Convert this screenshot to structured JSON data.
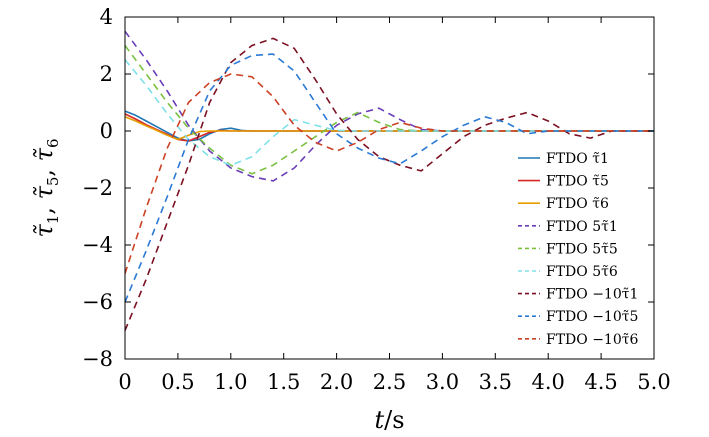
{
  "chart_data": {
    "type": "line",
    "xlabel": "t/s",
    "ylabel": "τ̃1, τ̃5, τ̃6",
    "xlim": [
      0,
      5
    ],
    "ylim": [
      -8,
      4
    ],
    "xticks": [
      "0",
      "0.5",
      "1.0",
      "1.5",
      "2.0",
      "2.5",
      "3.0",
      "3.5",
      "4.0",
      "4.5",
      "5.0"
    ],
    "yticks": [
      "−8",
      "−6",
      "−4",
      "−2",
      "0",
      "2",
      "4"
    ],
    "grid": false,
    "legend_position": "right",
    "series": [
      {
        "name": "FTDO τ̃1",
        "color": "#1f77b4",
        "dash": "solid",
        "x": [
          0,
          0.1,
          0.2,
          0.3,
          0.4,
          0.5,
          0.6,
          0.7,
          0.8,
          0.9,
          1.0,
          1.1,
          1.2,
          5.0
        ],
        "y": [
          0.7,
          0.55,
          0.35,
          0.15,
          -0.05,
          -0.25,
          -0.35,
          -0.3,
          -0.1,
          0.05,
          0.1,
          0.02,
          0,
          0
        ]
      },
      {
        "name": "FTDO τ̃5",
        "color": "#d62728",
        "dash": "solid",
        "x": [
          0,
          0.1,
          0.2,
          0.3,
          0.4,
          0.5,
          0.6,
          0.7,
          0.8,
          0.9,
          1.0,
          5.0
        ],
        "y": [
          0.6,
          0.42,
          0.22,
          0.05,
          -0.12,
          -0.3,
          -0.35,
          -0.2,
          -0.05,
          0.02,
          0,
          0
        ]
      },
      {
        "name": "FTDO τ̃6",
        "color": "#e69f00",
        "dash": "solid",
        "x": [
          0,
          0.1,
          0.2,
          0.3,
          0.4,
          0.5,
          0.6,
          0.7,
          0.8,
          5.0
        ],
        "y": [
          0.5,
          0.35,
          0.18,
          0.02,
          -0.15,
          -0.3,
          -0.15,
          -0.02,
          0,
          0
        ]
      },
      {
        "name": "FTDO 5τ̃1",
        "color": "#6a3db8",
        "dash": "dashed",
        "x": [
          0,
          0.2,
          0.4,
          0.6,
          0.8,
          1.0,
          1.2,
          1.4,
          1.6,
          1.8,
          2.0,
          2.2,
          2.4,
          2.6,
          2.8,
          3.0,
          5.0
        ],
        "y": [
          3.5,
          2.5,
          1.4,
          0.2,
          -0.7,
          -1.3,
          -1.6,
          -1.75,
          -1.3,
          -0.5,
          0.2,
          0.6,
          0.8,
          0.4,
          0.05,
          0,
          0
        ]
      },
      {
        "name": "FTDO 5τ̃5",
        "color": "#7ac142",
        "dash": "dashed",
        "x": [
          0,
          0.2,
          0.4,
          0.6,
          0.8,
          1.0,
          1.2,
          1.4,
          1.6,
          1.8,
          2.0,
          2.2,
          2.4,
          2.6,
          2.8,
          5.0
        ],
        "y": [
          3.0,
          2.0,
          1.0,
          0.1,
          -0.6,
          -1.2,
          -1.5,
          -1.2,
          -0.7,
          -0.2,
          0.3,
          0.65,
          0.3,
          0.05,
          0,
          0
        ]
      },
      {
        "name": "FTDO 5τ̃6",
        "color": "#7fe0e8",
        "dash": "dashed",
        "x": [
          0,
          0.2,
          0.4,
          0.6,
          0.8,
          1.0,
          1.2,
          1.4,
          1.6,
          1.8,
          2.0,
          2.2,
          5.0
        ],
        "y": [
          2.5,
          1.6,
          0.6,
          -0.3,
          -0.9,
          -1.2,
          -0.9,
          -0.2,
          0.4,
          0.2,
          0.02,
          0,
          0
        ]
      },
      {
        "name": "FTDO −10τ̃1",
        "color": "#7b1022",
        "dash": "dashed",
        "x": [
          0,
          0.2,
          0.4,
          0.6,
          0.8,
          1.0,
          1.2,
          1.4,
          1.6,
          1.8,
          2.0,
          2.2,
          2.4,
          2.6,
          2.8,
          3.0,
          3.2,
          3.4,
          3.6,
          3.8,
          4.0,
          4.2,
          4.4,
          4.6,
          5.0
        ],
        "y": [
          -7.0,
          -5.2,
          -3.2,
          -1.2,
          1.0,
          2.4,
          3.0,
          3.25,
          2.9,
          1.8,
          0.6,
          -0.3,
          -0.9,
          -1.2,
          -1.4,
          -0.8,
          -0.2,
          0.2,
          0.45,
          0.65,
          0.35,
          -0.1,
          -0.25,
          0,
          0
        ]
      },
      {
        "name": "FTDO −10τ̃5",
        "color": "#2a7ad5",
        "dash": "dashed",
        "x": [
          0,
          0.2,
          0.4,
          0.6,
          0.8,
          1.0,
          1.2,
          1.4,
          1.6,
          1.8,
          2.0,
          2.2,
          2.4,
          2.6,
          2.8,
          3.0,
          3.2,
          3.4,
          3.6,
          3.8,
          4.0,
          5.0
        ],
        "y": [
          -6.0,
          -4.2,
          -2.3,
          -0.3,
          1.4,
          2.3,
          2.65,
          2.7,
          2.1,
          1.0,
          -0.1,
          -0.6,
          -0.95,
          -1.15,
          -0.7,
          -0.2,
          0.2,
          0.5,
          0.3,
          -0.1,
          0,
          0
        ]
      },
      {
        "name": "FTDO −10τ̃6",
        "color": "#cc4125",
        "dash": "dashed",
        "x": [
          0,
          0.2,
          0.4,
          0.6,
          0.8,
          1.0,
          1.2,
          1.4,
          1.6,
          1.8,
          2.0,
          2.2,
          2.4,
          2.6,
          2.8,
          3.0,
          5.0
        ],
        "y": [
          -5.0,
          -2.7,
          -0.6,
          1.0,
          1.7,
          2.0,
          1.9,
          1.2,
          0.2,
          -0.4,
          -0.7,
          -0.4,
          0.05,
          0.3,
          0.1,
          0,
          0
        ]
      }
    ]
  }
}
